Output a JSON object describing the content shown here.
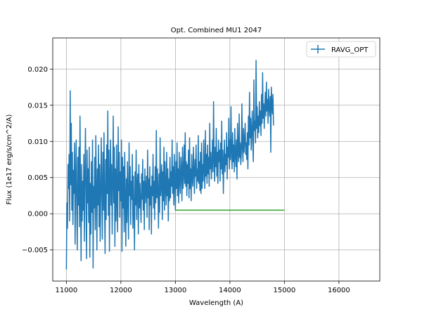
{
  "chart_data": {
    "type": "line",
    "title": "Opt. Combined MU1 2047",
    "xlabel": "Wavelength (A)",
    "ylabel": "Flux (1e17 erg/s/cm^2/A)",
    "xlim": [
      10750,
      16750
    ],
    "ylim": [
      -0.0093,
      0.0243
    ],
    "xticks": [
      11000,
      12000,
      13000,
      14000,
      15000,
      16000
    ],
    "xtick_labels": [
      "11000",
      "12000",
      "13000",
      "14000",
      "15000",
      "16000"
    ],
    "yticks": [
      -0.005,
      0.0,
      0.005,
      0.01,
      0.015,
      0.02
    ],
    "ytick_labels": [
      "−0.005",
      "0.000",
      "0.005",
      "0.010",
      "0.015",
      "0.020"
    ],
    "grid": true,
    "legend": {
      "placement": "top-right",
      "entries": [
        "RAVG_OPT"
      ]
    },
    "series": [
      {
        "name": "RAVG_OPT",
        "color": "#1f77b4",
        "x_start": 11000,
        "x_step": 10,
        "values": [
          -0.0077,
          0.0015,
          -0.002,
          0.0068,
          0.0035,
          0.0082,
          -0.001,
          0.017,
          0.004,
          0.0125,
          0.0005,
          0.0085,
          -0.0015,
          0.006,
          0.0028,
          0.0098,
          -0.0042,
          0.0048,
          0.0102,
          0.0008,
          -0.005,
          0.0078,
          0.0012,
          0.0092,
          -0.0018,
          0.0135,
          0.0022,
          -0.0065,
          0.0068,
          -0.001,
          0.0045,
          0.0005,
          0.0082,
          -0.0038,
          0.0052,
          0.0118,
          0.0025,
          -0.0062,
          0.0088,
          0.0015,
          0.0062,
          -0.0012,
          0.0092,
          -0.006,
          0.0042,
          -0.0028,
          0.0072,
          0.0002,
          0.0102,
          -0.0075,
          0.0038,
          0.0008,
          0.0078,
          -0.0022,
          0.0108,
          0.0035,
          -0.005,
          0.0062,
          0.0012,
          0.0095,
          -0.0018,
          0.0068,
          -0.0038,
          0.0025,
          0.0105,
          0.0032,
          -0.0035,
          0.0085,
          0.0005,
          0.0112,
          0.0015,
          -0.0055,
          0.0075,
          -0.0008,
          0.0095,
          0.0028,
          0.0142,
          -0.0002,
          0.0088,
          -0.0052,
          0.0052,
          0.0102,
          0.0012,
          0.0068,
          -0.0028,
          0.0045,
          0.0135,
          0.0015,
          0.0092,
          -0.0045,
          0.0062,
          -0.001,
          0.0095,
          0.0018,
          -0.0025,
          0.012,
          0.0032,
          0.0085,
          -0.0005,
          0.0058,
          0.0018,
          0.0102,
          -0.0052,
          0.0078,
          0.0008,
          0.0065,
          -0.0025,
          0.0085,
          0.0025,
          -0.0045,
          0.0048,
          -0.0012,
          0.0072,
          0.0018,
          -0.0035,
          0.0098,
          0.0025,
          0.0065,
          -0.0015,
          0.0045,
          0.002,
          0.0082,
          -0.002,
          0.0052,
          0.0005,
          -0.005,
          0.0058,
          0.0012,
          0.0088,
          -0.0008,
          0.0042,
          0.0055,
          -0.0028,
          0.0068,
          0.0008,
          0.0042,
          0.0012,
          -0.0012,
          0.0055,
          0.002,
          0.0075,
          0.0005,
          0.0045,
          -0.0022,
          0.0062,
          0.0015,
          0.0035,
          0.0052,
          -0.0005,
          0.0088,
          0.0022,
          0.0048,
          -0.0022,
          0.0065,
          0.0012,
          0.0038,
          -0.0028,
          0.0052,
          0.0025,
          0.0082,
          0.0008,
          0.0045,
          -0.0008,
          0.0065,
          0.0015,
          0.0115,
          0.0022,
          0.0062,
          0.0032,
          -0.002,
          0.0055,
          0.0002,
          0.0105,
          0.0025,
          0.0042,
          0.0068,
          -0.0008,
          0.0058,
          0.0018,
          0.0092,
          0.0005,
          0.0072,
          0.0038,
          0.0012,
          0.0085,
          0.0025,
          0.0062,
          -0.001,
          0.0048,
          0.0018,
          0.0078,
          0.0022,
          0.0058,
          0.0038,
          0.0102,
          0.0028,
          0.0065,
          0.0012,
          0.0082,
          0.0042,
          0.0005,
          0.0072,
          0.0035,
          0.0098,
          0.0025,
          0.0062,
          0.0015,
          0.0085,
          0.0045,
          0.0028,
          0.0078,
          0.0062,
          0.0018,
          0.0092,
          0.0035,
          0.0055,
          0.0095,
          0.0042,
          0.0112,
          0.0038,
          0.0072,
          0.0025,
          0.0068,
          0.0042,
          0.0088,
          0.0022,
          0.0105,
          0.0035,
          0.0062,
          0.0018,
          0.0082,
          0.0048,
          0.0038,
          0.0092,
          0.0058,
          0.0028,
          0.0075,
          0.0052,
          0.0095,
          0.0035,
          0.0062,
          0.0045,
          0.0108,
          0.0042,
          0.0072,
          0.0032,
          0.0085,
          0.0028,
          0.0098,
          0.0035,
          0.0068,
          0.0045,
          0.0102,
          0.0062,
          0.0035,
          0.0115,
          0.0052,
          0.0082,
          0.0042,
          0.0095,
          0.0055,
          0.0078,
          0.0038,
          0.0125,
          0.0062,
          0.0085,
          0.0048,
          0.0068,
          0.0102,
          0.0058,
          0.0155,
          0.0075,
          0.0045,
          0.0092,
          0.0065,
          0.0118,
          0.0052,
          0.0085,
          0.0042,
          0.0102,
          0.0072,
          0.0088,
          0.0045,
          0.0098,
          0.0062,
          0.0128,
          0.0055,
          0.0088,
          0.0028,
          0.0072,
          0.0102,
          0.0058,
          0.0082,
          0.0068,
          0.0112,
          0.0048,
          0.0092,
          0.0078,
          0.0132,
          0.0062,
          0.0102,
          0.0075,
          0.0148,
          0.0085,
          0.0062,
          0.0112,
          0.0072,
          0.0095,
          0.0058,
          0.0118,
          0.0082,
          0.0065,
          0.0102,
          0.0048,
          0.0125,
          0.0088,
          0.0072,
          0.0138,
          0.0078,
          0.0098,
          0.0068,
          0.0085,
          0.0152,
          0.0092,
          0.0072,
          0.0118,
          0.0085,
          0.0102,
          0.0125,
          0.0082,
          0.0098,
          0.0075,
          0.0112,
          0.0062,
          0.0135,
          0.0095,
          0.0168,
          0.0105,
          0.0132,
          0.0088,
          0.0115,
          0.0142,
          0.0095,
          0.0072,
          0.0185,
          0.0115,
          0.0128,
          0.0098,
          0.0212,
          0.0118,
          0.0148,
          0.0105,
          0.0135,
          0.0112,
          0.0155,
          0.0122,
          0.0142,
          0.0108,
          0.0165,
          0.0125,
          0.0195,
          0.0132,
          0.0152,
          0.0118,
          0.0148,
          0.0168,
          0.0135,
          0.0182,
          0.0142,
          0.0158,
          0.0125,
          0.0172,
          0.0148,
          0.0135,
          0.0162,
          0.0085,
          0.0175,
          0.0152,
          0.0138,
          0.0165,
          0.0122
        ]
      }
    ],
    "reference_line": {
      "color": "#2ca02c",
      "x": [
        13000,
        15000
      ],
      "y": 0.0005
    }
  }
}
